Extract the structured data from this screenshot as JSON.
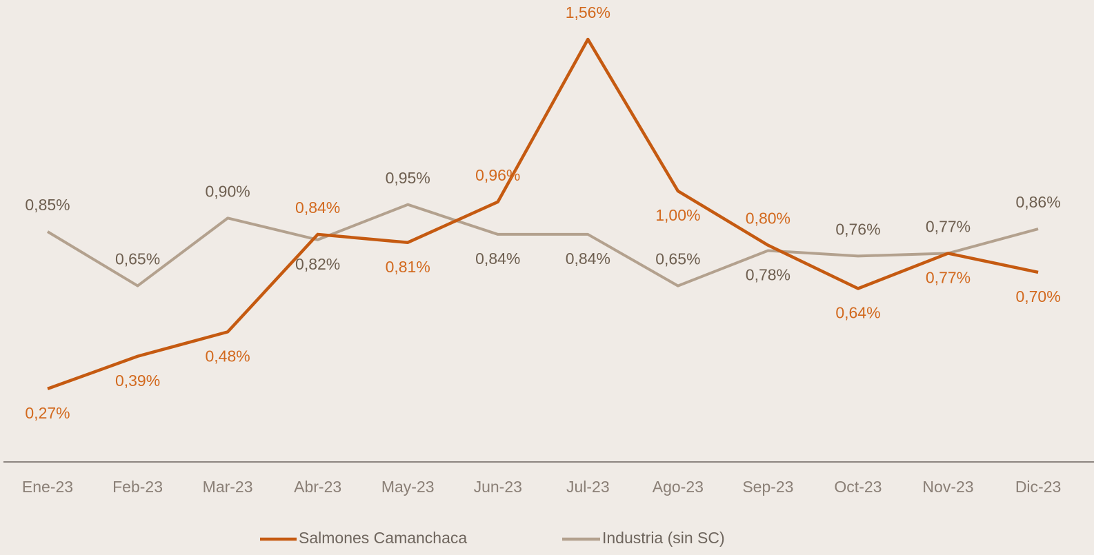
{
  "chart_data": {
    "type": "line",
    "categories": [
      "Ene-23",
      "Feb-23",
      "Mar-23",
      "Abr-23",
      "May-23",
      "Jun-23",
      "Jul-23",
      "Ago-23",
      "Sep-23",
      "Oct-23",
      "Nov-23",
      "Dic-23"
    ],
    "series": [
      {
        "name": "Salmones Camanchaca",
        "color": "#c55a11",
        "values": [
          0.27,
          0.39,
          0.48,
          0.84,
          0.81,
          0.96,
          1.56,
          1.0,
          0.8,
          0.64,
          0.77,
          0.7
        ],
        "value_labels": [
          "0,27%",
          "0,39%",
          "0,48%",
          "0,84%",
          "0,81%",
          "0,96%",
          "1,56%",
          "1,00%",
          "0,80%",
          "0,64%",
          "0,77%",
          "0,70%"
        ]
      },
      {
        "name": "Industria (sin SC)",
        "color": "#b3a18e",
        "values": [
          0.85,
          0.65,
          0.9,
          0.82,
          0.95,
          0.84,
          0.84,
          0.65,
          0.78,
          0.76,
          0.77,
          0.86
        ],
        "value_labels": [
          "0,85%",
          "0,65%",
          "0,90%",
          "0,82%",
          "0,95%",
          "0,84%",
          "0,84%",
          "0,65%",
          "0,78%",
          "0,76%",
          "0,77%",
          "0,86%"
        ]
      }
    ],
    "ylim": [
      0,
      1.7
    ],
    "legend": "bottom"
  }
}
